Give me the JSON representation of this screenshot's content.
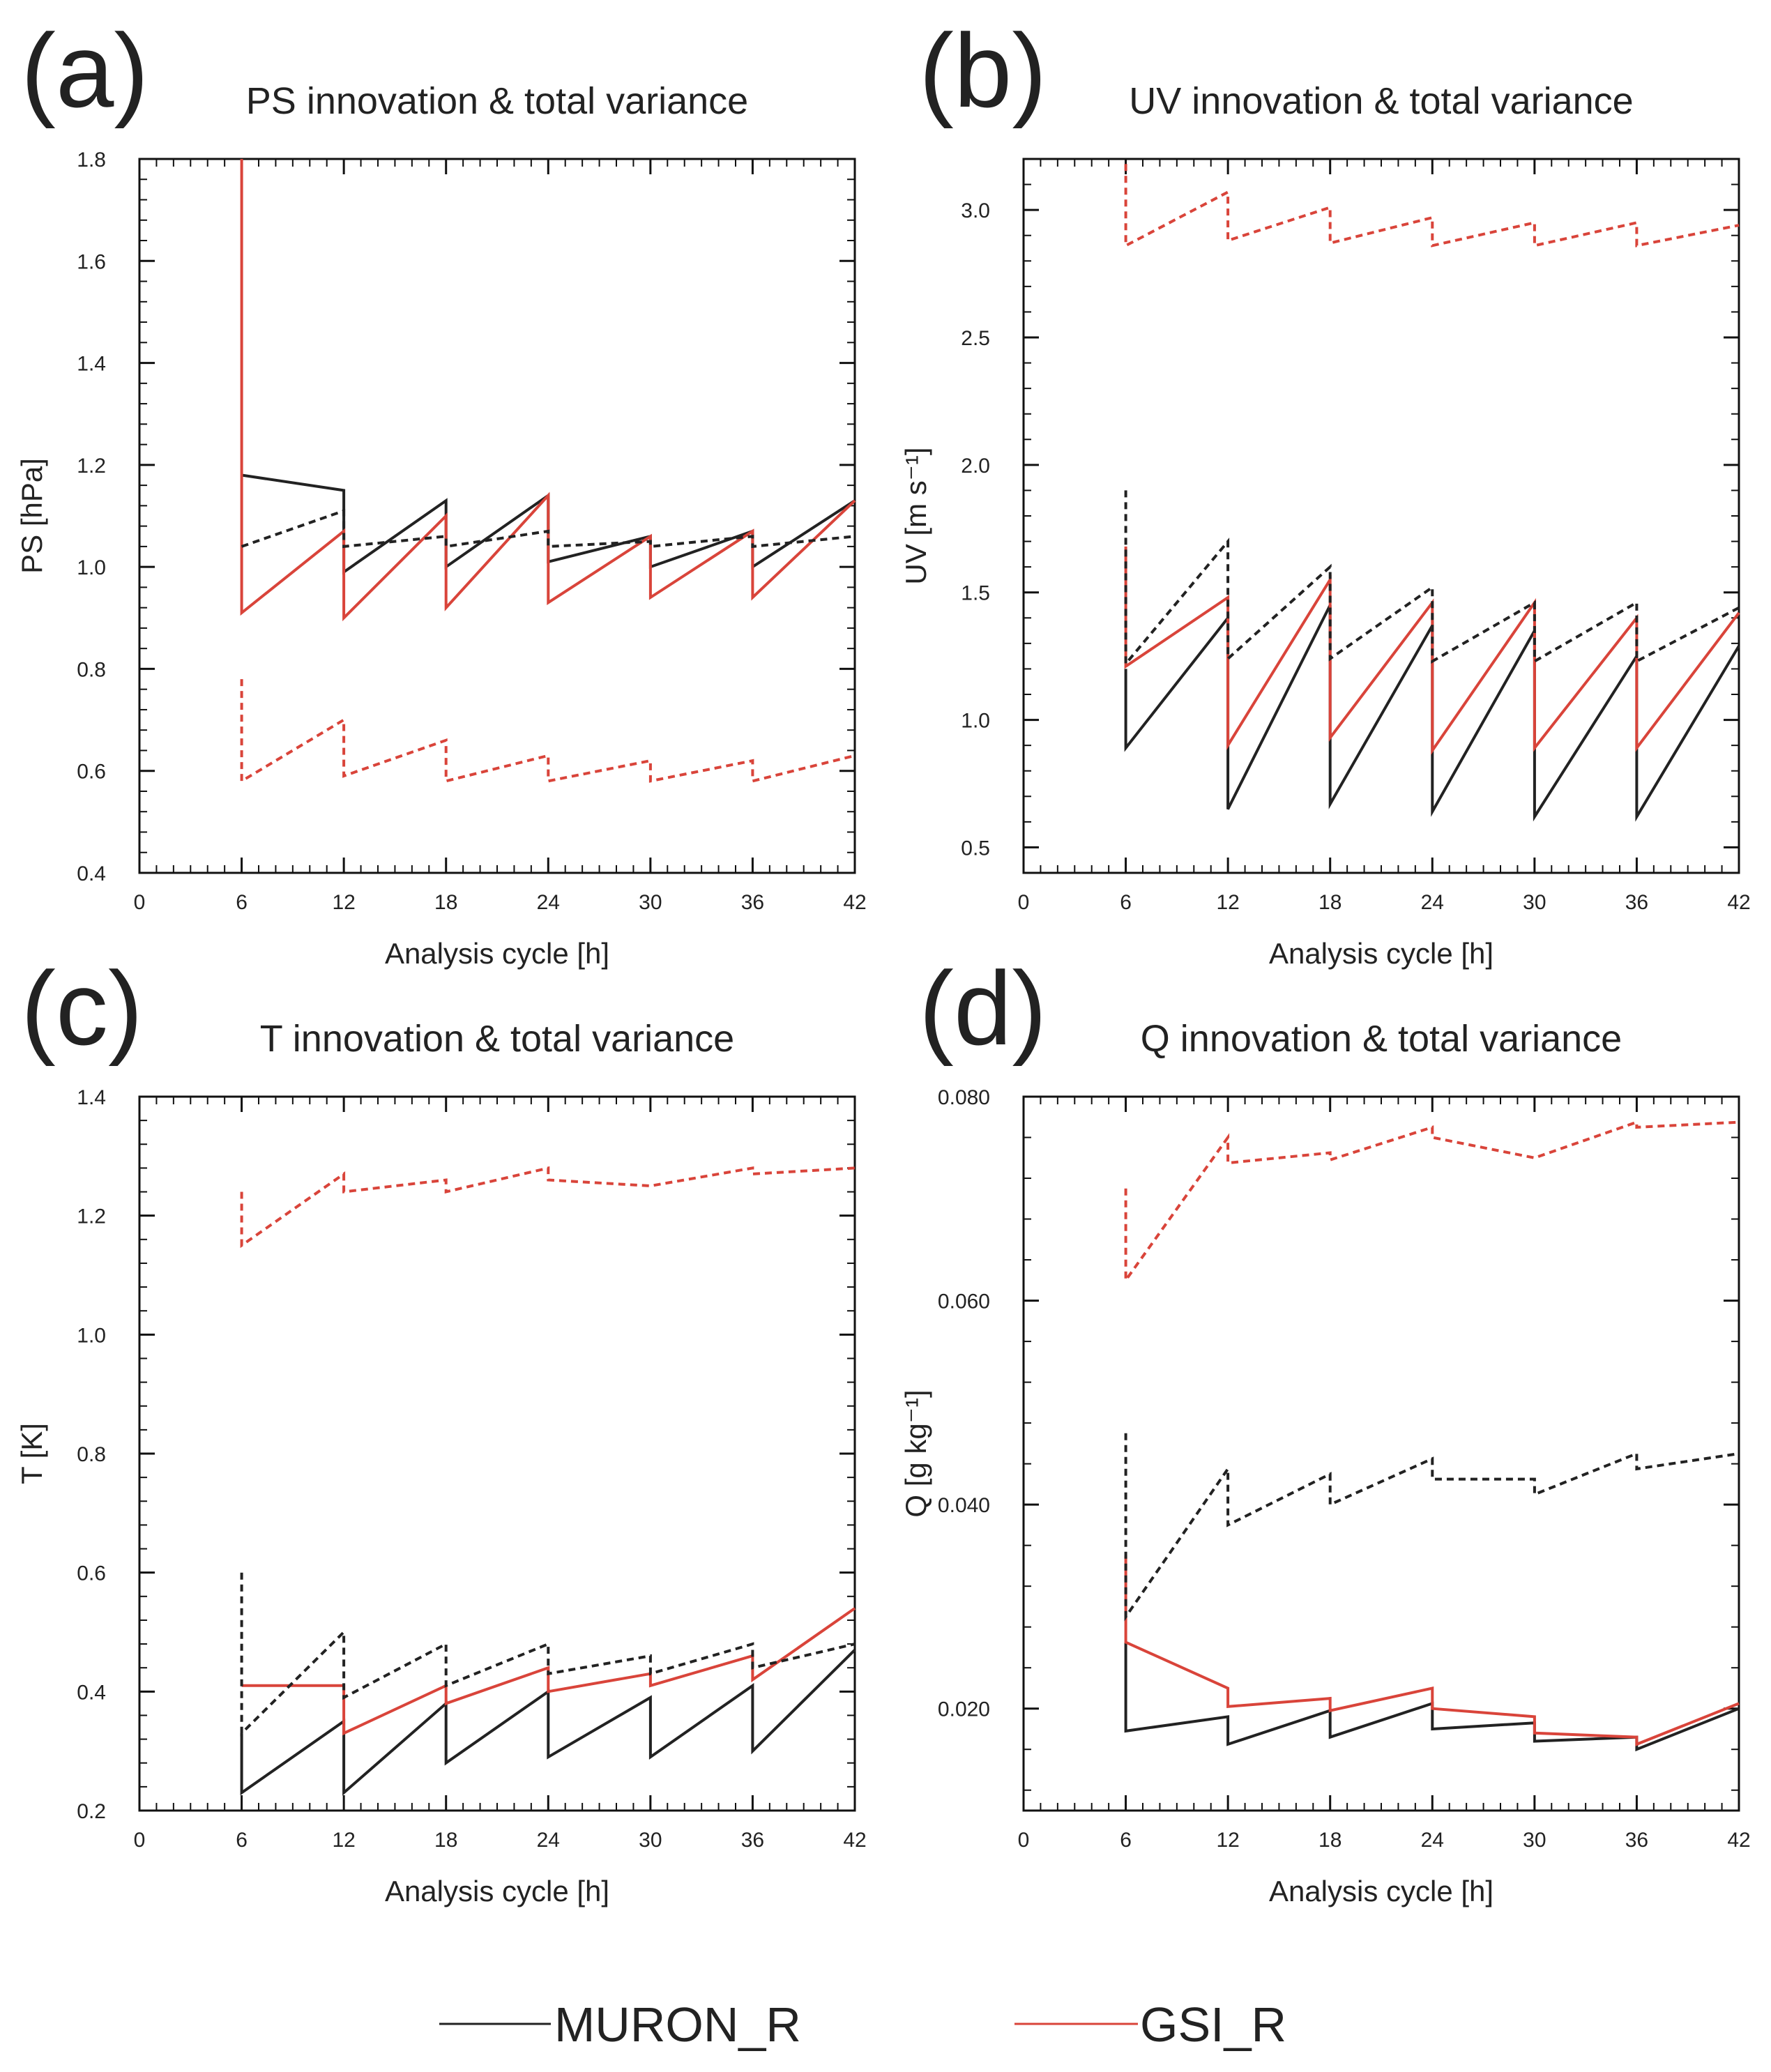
{
  "colors": {
    "muron": "#222222",
    "gsi": "#d9443a",
    "axis": "#111111"
  },
  "legend": [
    {
      "label": "MURON_R",
      "color": "#222222"
    },
    {
      "label": "GSI_R",
      "color": "#d9443a"
    }
  ],
  "line_style_note": "",
  "chart_data": [
    {
      "type": "line",
      "panel_letter": "(a)",
      "title": "PS innovation & total variance",
      "xlabel": "Analysis cycle [h]",
      "ylabel": "PS  [hPa]",
      "xlim": [
        0,
        42
      ],
      "ylim": [
        0.4,
        1.8
      ],
      "x_ticks": [
        0,
        6,
        12,
        18,
        24,
        30,
        36,
        42
      ],
      "y_ticks": [
        0.4,
        0.6,
        0.8,
        1.0,
        1.2,
        1.4,
        1.6,
        1.8
      ],
      "y_tick_decimals": 1,
      "series": [
        {
          "color": "#222222",
          "dash": false,
          "points": [
            [
              6,
              1.18
            ],
            [
              12,
              1.15
            ],
            [
              12,
              0.99
            ],
            [
              18,
              1.13
            ],
            [
              18,
              1.0
            ],
            [
              24,
              1.14
            ],
            [
              24,
              1.01
            ],
            [
              30,
              1.06
            ],
            [
              30,
              1.0
            ],
            [
              36,
              1.07
            ],
            [
              36,
              1.0
            ],
            [
              42,
              1.13
            ]
          ]
        },
        {
          "color": "#d9443a",
          "dash": false,
          "points": [
            [
              6,
              1.8
            ],
            [
              6,
              0.91
            ],
            [
              12,
              1.07
            ],
            [
              12,
              0.9
            ],
            [
              18,
              1.1
            ],
            [
              18,
              0.92
            ],
            [
              24,
              1.14
            ],
            [
              24,
              0.93
            ],
            [
              30,
              1.06
            ],
            [
              30,
              0.94
            ],
            [
              36,
              1.07
            ],
            [
              36,
              0.94
            ],
            [
              42,
              1.13
            ]
          ]
        },
        {
          "color": "#222222",
          "dash": true,
          "points": [
            [
              6,
              1.04
            ],
            [
              12,
              1.11
            ],
            [
              12,
              1.04
            ],
            [
              18,
              1.06
            ],
            [
              18,
              1.04
            ],
            [
              24,
              1.07
            ],
            [
              24,
              1.04
            ],
            [
              30,
              1.05
            ],
            [
              30,
              1.04
            ],
            [
              36,
              1.06
            ],
            [
              36,
              1.04
            ],
            [
              42,
              1.06
            ]
          ]
        },
        {
          "color": "#d9443a",
          "dash": true,
          "points": [
            [
              6,
              0.78
            ],
            [
              6,
              0.58
            ],
            [
              12,
              0.7
            ],
            [
              12,
              0.59
            ],
            [
              18,
              0.66
            ],
            [
              18,
              0.58
            ],
            [
              24,
              0.63
            ],
            [
              24,
              0.58
            ],
            [
              30,
              0.62
            ],
            [
              30,
              0.58
            ],
            [
              36,
              0.62
            ],
            [
              36,
              0.58
            ],
            [
              42,
              0.63
            ]
          ]
        }
      ]
    },
    {
      "type": "line",
      "panel_letter": "(b)",
      "title": "UV innovation & total variance",
      "xlabel": "Analysis cycle [h]",
      "ylabel": "UV  [m s⁻¹]",
      "xlim": [
        0,
        42
      ],
      "ylim": [
        0.4,
        3.2
      ],
      "x_ticks": [
        0,
        6,
        12,
        18,
        24,
        30,
        36,
        42
      ],
      "y_ticks": [
        0.5,
        1.0,
        1.5,
        2.0,
        2.5,
        3.0
      ],
      "y_tick_decimals": 1,
      "series": [
        {
          "color": "#222222",
          "dash": false,
          "points": [
            [
              6,
              1.2
            ],
            [
              6,
              0.89
            ],
            [
              12,
              1.4
            ],
            [
              12,
              0.65
            ],
            [
              18,
              1.45
            ],
            [
              18,
              0.67
            ],
            [
              24,
              1.37
            ],
            [
              24,
              0.64
            ],
            [
              30,
              1.35
            ],
            [
              30,
              0.62
            ],
            [
              36,
              1.25
            ],
            [
              36,
              0.62
            ],
            [
              42,
              1.29
            ]
          ]
        },
        {
          "color": "#d9443a",
          "dash": false,
          "points": [
            [
              6,
              1.68
            ],
            [
              6,
              1.21
            ],
            [
              12,
              1.48
            ],
            [
              12,
              0.9
            ],
            [
              18,
              1.55
            ],
            [
              18,
              0.93
            ],
            [
              24,
              1.46
            ],
            [
              24,
              0.88
            ],
            [
              30,
              1.46
            ],
            [
              30,
              0.89
            ],
            [
              36,
              1.4
            ],
            [
              36,
              0.89
            ],
            [
              42,
              1.42
            ]
          ]
        },
        {
          "color": "#222222",
          "dash": true,
          "points": [
            [
              6,
              1.9
            ],
            [
              6,
              1.22
            ],
            [
              12,
              1.7
            ],
            [
              12,
              1.24
            ],
            [
              18,
              1.6
            ],
            [
              18,
              1.24
            ],
            [
              24,
              1.52
            ],
            [
              24,
              1.23
            ],
            [
              30,
              1.46
            ],
            [
              30,
              1.23
            ],
            [
              36,
              1.46
            ],
            [
              36,
              1.23
            ],
            [
              42,
              1.44
            ]
          ]
        },
        {
          "color": "#d9443a",
          "dash": true,
          "points": [
            [
              6,
              3.18
            ],
            [
              6,
              2.86
            ],
            [
              12,
              3.07
            ],
            [
              12,
              2.88
            ],
            [
              18,
              3.01
            ],
            [
              18,
              2.87
            ],
            [
              24,
              2.97
            ],
            [
              24,
              2.86
            ],
            [
              30,
              2.95
            ],
            [
              30,
              2.86
            ],
            [
              36,
              2.95
            ],
            [
              36,
              2.86
            ],
            [
              42,
              2.94
            ]
          ]
        }
      ]
    },
    {
      "type": "line",
      "panel_letter": "(c)",
      "title": "T innovation & total variance",
      "xlabel": "Analysis cycle [h]",
      "ylabel": "T  [K]",
      "xlim": [
        0,
        42
      ],
      "ylim": [
        0.2,
        1.4
      ],
      "x_ticks": [
        0,
        6,
        12,
        18,
        24,
        30,
        36,
        42
      ],
      "y_ticks": [
        0.2,
        0.4,
        0.6,
        0.8,
        1.0,
        1.2,
        1.4
      ],
      "y_tick_decimals": 1,
      "series": [
        {
          "color": "#222222",
          "dash": false,
          "points": [
            [
              6,
              0.33
            ],
            [
              6,
              0.23
            ],
            [
              12,
              0.35
            ],
            [
              12,
              0.23
            ],
            [
              18,
              0.38
            ],
            [
              18,
              0.28
            ],
            [
              24,
              0.4
            ],
            [
              24,
              0.29
            ],
            [
              30,
              0.39
            ],
            [
              30,
              0.29
            ],
            [
              36,
              0.41
            ],
            [
              36,
              0.3
            ],
            [
              42,
              0.47
            ]
          ]
        },
        {
          "color": "#d9443a",
          "dash": false,
          "points": [
            [
              6,
              0.41
            ],
            [
              12,
              0.41
            ],
            [
              12,
              0.33
            ],
            [
              18,
              0.41
            ],
            [
              18,
              0.38
            ],
            [
              24,
              0.44
            ],
            [
              24,
              0.4
            ],
            [
              30,
              0.43
            ],
            [
              30,
              0.41
            ],
            [
              36,
              0.46
            ],
            [
              36,
              0.42
            ],
            [
              42,
              0.54
            ]
          ]
        },
        {
          "color": "#222222",
          "dash": true,
          "points": [
            [
              6,
              0.6
            ],
            [
              6,
              0.33
            ],
            [
              12,
              0.5
            ],
            [
              12,
              0.39
            ],
            [
              18,
              0.48
            ],
            [
              18,
              0.41
            ],
            [
              24,
              0.48
            ],
            [
              24,
              0.43
            ],
            [
              30,
              0.46
            ],
            [
              30,
              0.43
            ],
            [
              36,
              0.48
            ],
            [
              36,
              0.44
            ],
            [
              42,
              0.48
            ]
          ]
        },
        {
          "color": "#d9443a",
          "dash": true,
          "points": [
            [
              6,
              1.24
            ],
            [
              6,
              1.15
            ],
            [
              12,
              1.27
            ],
            [
              12,
              1.24
            ],
            [
              18,
              1.26
            ],
            [
              18,
              1.24
            ],
            [
              24,
              1.28
            ],
            [
              24,
              1.26
            ],
            [
              30,
              1.25
            ],
            [
              30,
              1.25
            ],
            [
              36,
              1.28
            ],
            [
              36,
              1.27
            ],
            [
              42,
              1.28
            ]
          ]
        }
      ]
    },
    {
      "type": "line",
      "panel_letter": "(d)",
      "title": "Q innovation & total variance",
      "xlabel": "Analysis cycle [h]",
      "ylabel": "Q  [g kg⁻¹]",
      "xlim": [
        0,
        42
      ],
      "ylim": [
        0.01,
        0.08
      ],
      "x_ticks": [
        0,
        6,
        12,
        18,
        24,
        30,
        36,
        42
      ],
      "y_ticks": [
        0.02,
        0.04,
        0.06,
        0.08
      ],
      "y_tick_decimals": 3,
      "series": [
        {
          "color": "#222222",
          "dash": false,
          "points": [
            [
              6,
              0.0265
            ],
            [
              6,
              0.0178
            ],
            [
              12,
              0.0192
            ],
            [
              12,
              0.0165
            ],
            [
              18,
              0.0198
            ],
            [
              18,
              0.0172
            ],
            [
              24,
              0.0205
            ],
            [
              24,
              0.018
            ],
            [
              30,
              0.0186
            ],
            [
              30,
              0.0168
            ],
            [
              36,
              0.0172
            ],
            [
              36,
              0.016
            ],
            [
              42,
              0.02
            ]
          ]
        },
        {
          "color": "#d9443a",
          "dash": false,
          "points": [
            [
              6,
              0.035
            ],
            [
              6,
              0.0265
            ],
            [
              12,
              0.022
            ],
            [
              12,
              0.0202
            ],
            [
              18,
              0.021
            ],
            [
              18,
              0.0198
            ],
            [
              24,
              0.022
            ],
            [
              24,
              0.02
            ],
            [
              30,
              0.0192
            ],
            [
              30,
              0.0176
            ],
            [
              36,
              0.0172
            ],
            [
              36,
              0.0165
            ],
            [
              42,
              0.0205
            ]
          ]
        },
        {
          "color": "#222222",
          "dash": true,
          "points": [
            [
              6,
              0.047
            ],
            [
              6,
              0.029
            ],
            [
              12,
              0.0435
            ],
            [
              12,
              0.038
            ],
            [
              18,
              0.043
            ],
            [
              18,
              0.04
            ],
            [
              24,
              0.0445
            ],
            [
              24,
              0.0425
            ],
            [
              30,
              0.0425
            ],
            [
              30,
              0.041
            ],
            [
              36,
              0.045
            ],
            [
              36,
              0.0435
            ],
            [
              42,
              0.045
            ]
          ]
        },
        {
          "color": "#d9443a",
          "dash": true,
          "points": [
            [
              6,
              0.071
            ],
            [
              6,
              0.062
            ],
            [
              12,
              0.076
            ],
            [
              12,
              0.0735
            ],
            [
              18,
              0.0745
            ],
            [
              18,
              0.0738
            ],
            [
              24,
              0.077
            ],
            [
              24,
              0.076
            ],
            [
              30,
              0.074
            ],
            [
              30,
              0.074
            ],
            [
              36,
              0.0775
            ],
            [
              36,
              0.077
            ],
            [
              42,
              0.0775
            ]
          ]
        }
      ]
    }
  ]
}
